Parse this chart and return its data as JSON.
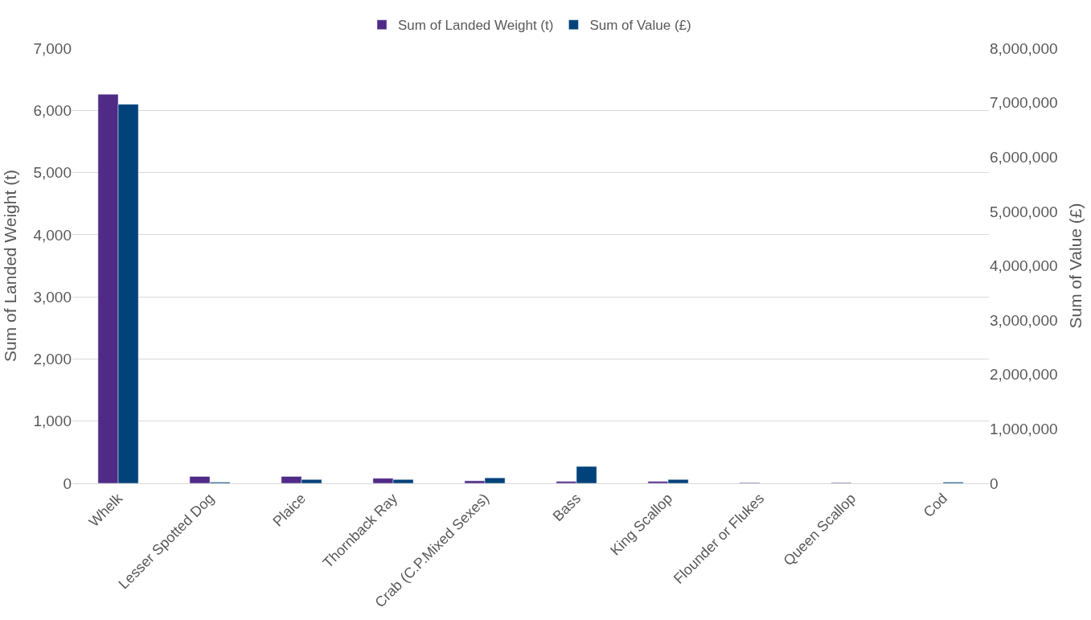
{
  "chart_data": {
    "type": "bar",
    "categories": [
      "Whelk",
      "Lesser Spotted Dog",
      "Plaice",
      "Thornback Ray",
      "Crab (C.P.Mixed Sexes)",
      "Bass",
      "King Scallop",
      "Flounder or Flukes",
      "Queen Scallop",
      "Cod"
    ],
    "series": [
      {
        "name": "Sum of Landed Weight (t)",
        "color": "#4f2a86",
        "values": [
          6260,
          110,
          110,
          80,
          40,
          30,
          30,
          10,
          10,
          null
        ]
      },
      {
        "name": "Sum of Value (£)",
        "color": "#00427a",
        "axis": "y2",
        "values": [
          6970000,
          20000,
          70000,
          70000,
          100000,
          310000,
          70000,
          null,
          null,
          20000
        ]
      }
    ],
    "ylabel": "Sum of Landed Weight (t)",
    "y2label": "Sum of Value (£)",
    "ylim": [
      0,
      7000
    ],
    "yticks": [
      {
        "value": 0,
        "label": "0"
      },
      {
        "value": 1000,
        "label": "1,000"
      },
      {
        "value": 2000,
        "label": "2,000"
      },
      {
        "value": 3000,
        "label": "3,000"
      },
      {
        "value": 4000,
        "label": "4,000"
      },
      {
        "value": 5000,
        "label": "5,000"
      },
      {
        "value": 6000,
        "label": "6,000"
      },
      {
        "value": 7000,
        "label": "7,000"
      }
    ],
    "y2lim": [
      0,
      8000000
    ],
    "y2ticks": [
      {
        "value": 0,
        "label": "0"
      },
      {
        "value": 1000000,
        "label": "1,000,000"
      },
      {
        "value": 2000000,
        "label": "2,000,000"
      },
      {
        "value": 3000000,
        "label": "3,000,000"
      },
      {
        "value": 4000000,
        "label": "4,000,000"
      },
      {
        "value": 5000000,
        "label": "5,000,000"
      },
      {
        "value": 6000000,
        "label": "6,000,000"
      },
      {
        "value": 7000000,
        "label": "7,000,000"
      },
      {
        "value": 8000000,
        "label": "8,000,000"
      }
    ],
    "grid": "y",
    "legend": "top"
  }
}
